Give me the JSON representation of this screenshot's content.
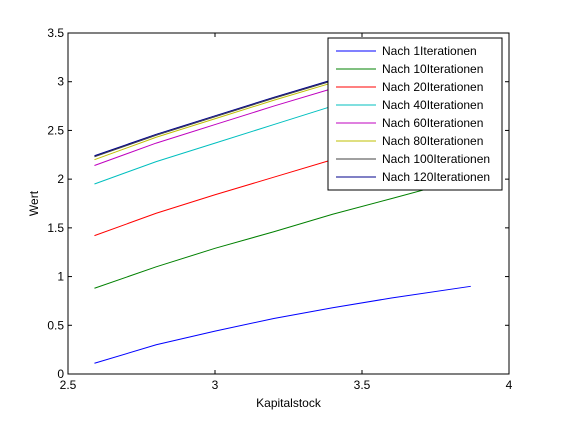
{
  "chart_data": {
    "type": "line",
    "xlabel": "Kapitalstock",
    "ylabel": "Wert",
    "xlim": [
      2.5,
      4
    ],
    "ylim": [
      0,
      3.5
    ],
    "xticks": [
      2.5,
      3,
      3.5,
      4
    ],
    "xtick_labels": [
      "2.5",
      "3",
      "3.5",
      "4"
    ],
    "yticks": [
      0,
      0.5,
      1,
      1.5,
      2,
      2.5,
      3,
      3.5
    ],
    "ytick_labels": [
      "0",
      "0.5",
      "1",
      "1.5",
      "2",
      "2.5",
      "3",
      "3.5"
    ],
    "grid": false,
    "legend_position": "top-right",
    "x": [
      2.59,
      2.8,
      3.0,
      3.2,
      3.4,
      3.6,
      3.87
    ],
    "series": [
      {
        "name": "Nach 1Iterationen",
        "color": "#0000ff",
        "values": [
          0.11,
          0.3,
          0.44,
          0.57,
          0.68,
          0.78,
          0.9
        ]
      },
      {
        "name": "Nach 10Iterationen",
        "color": "#008000",
        "values": [
          0.88,
          1.1,
          1.29,
          1.46,
          1.64,
          1.8,
          2.02
        ]
      },
      {
        "name": "Nach 20Iterationen",
        "color": "#ff0000",
        "values": [
          1.42,
          1.65,
          1.84,
          2.02,
          2.2,
          2.37,
          2.6
        ]
      },
      {
        "name": "Nach 40Iterationen",
        "color": "#00bfbf",
        "values": [
          1.95,
          2.18,
          2.37,
          2.56,
          2.75,
          2.93,
          3.17
        ]
      },
      {
        "name": "Nach 60Iterationen",
        "color": "#bf00bf",
        "values": [
          2.14,
          2.37,
          2.56,
          2.75,
          2.93,
          3.11,
          3.35
        ]
      },
      {
        "name": "Nach 80Iterationen",
        "color": "#bfbf00",
        "values": [
          2.2,
          2.43,
          2.62,
          2.81,
          2.99,
          3.17,
          3.41
        ]
      },
      {
        "name": "Nach 100Iterationen",
        "color": "#404040",
        "values": [
          2.23,
          2.45,
          2.64,
          2.83,
          3.01,
          3.19,
          3.43
        ]
      },
      {
        "name": "Nach 120Iterationen",
        "color": "#00008b",
        "values": [
          2.24,
          2.46,
          2.65,
          2.84,
          3.02,
          3.2,
          3.44
        ]
      }
    ]
  }
}
